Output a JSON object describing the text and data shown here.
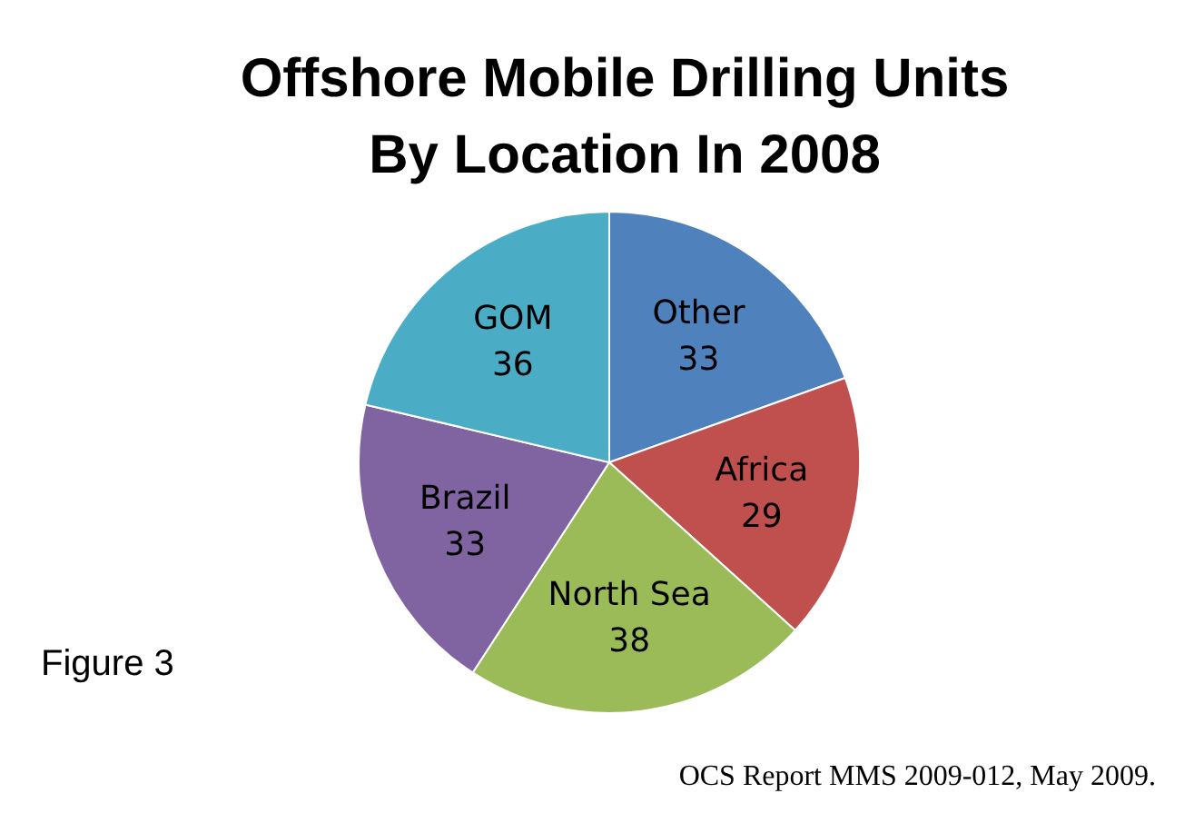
{
  "chart_data": {
    "type": "pie",
    "title": "Offshore Mobile Drilling Units\nBy Location In 2008",
    "categories": [
      "Other",
      "Africa",
      "North Sea",
      "Brazil",
      "GOM"
    ],
    "values": [
      33,
      29,
      38,
      33,
      36
    ],
    "colors": [
      "#4f81bd",
      "#c0504d",
      "#9bbb59",
      "#8064a2",
      "#4bacc6"
    ],
    "data_labels": true,
    "annotations": [
      "Figure 3",
      "OCS Report MMS 2009-012, May 2009."
    ]
  }
}
